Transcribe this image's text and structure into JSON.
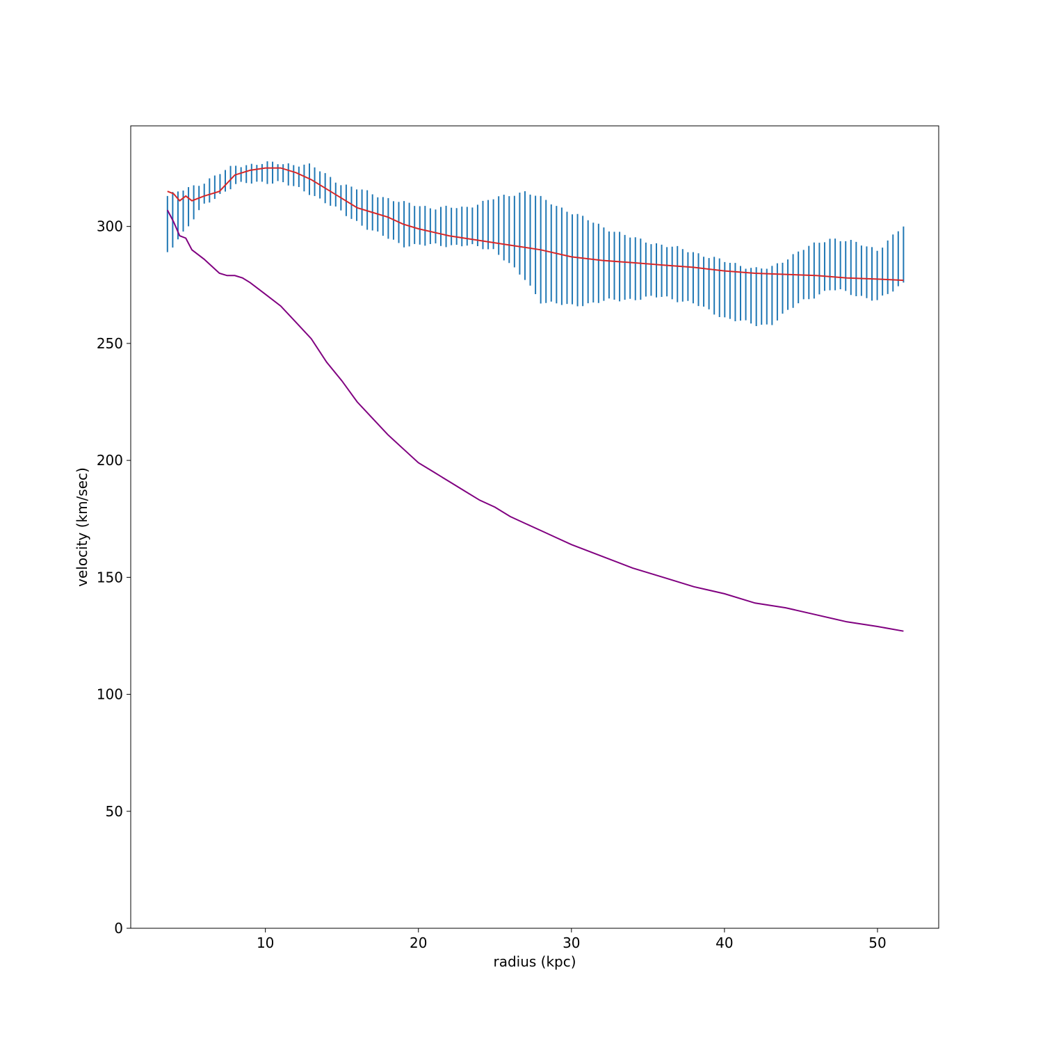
{
  "chart_data": {
    "type": "line",
    "title": "",
    "xlabel": "radius (kpc)",
    "ylabel": "velocity (km/sec)",
    "xlim": [
      1.2,
      54.0
    ],
    "ylim": [
      0,
      343
    ],
    "xticks": [
      10,
      20,
      30,
      40,
      50
    ],
    "yticks": [
      0,
      50,
      100,
      150,
      200,
      250,
      300
    ],
    "grid": false,
    "legend": "none",
    "colors": {
      "errorbar": "#1f77b4",
      "fit_line": "#d62728",
      "component_line": "#800080"
    },
    "observed": {
      "x": [
        3.6,
        6.0,
        8.0,
        10.0,
        11.0,
        13.0,
        15.0,
        17.0,
        19.0,
        21.0,
        23.0,
        25.0,
        27.0,
        28.0,
        30.0,
        32.0,
        34.0,
        36.0,
        38.0,
        40.0,
        42.0,
        43.0,
        45.0,
        47.0,
        48.0,
        50.0,
        51.7
      ],
      "y": [
        301,
        314,
        322,
        323,
        323,
        320,
        312,
        306,
        301,
        300,
        300,
        301,
        296,
        290,
        286,
        284,
        282,
        281,
        278,
        273,
        270,
        270,
        279,
        284,
        283,
        279,
        288
      ],
      "yerr": [
        12,
        5,
        4,
        4,
        4,
        6,
        6,
        8,
        9,
        8,
        8,
        11,
        19,
        22,
        20,
        16,
        13,
        11,
        11,
        12,
        12,
        12,
        11,
        11,
        11,
        11,
        12
      ]
    },
    "series": [
      {
        "x": [
          3.6,
          4.0,
          4.4,
          4.8,
          5.2,
          6.0,
          7.0,
          8.0,
          9.0,
          10.0,
          11.0,
          12.0,
          13.0,
          14.0,
          15.0,
          16.0,
          17.0,
          18.0,
          19.0,
          20.0,
          22.0,
          24.0,
          26.0,
          28.0,
          30.0,
          32.0,
          34.0,
          36.0,
          38.0,
          40.0,
          42.0,
          44.0,
          46.0,
          48.0,
          50.0,
          51.7
        ],
        "y": [
          315,
          314,
          311,
          313,
          311,
          313,
          315,
          322,
          324,
          325,
          325,
          323,
          320,
          316,
          312,
          308,
          306,
          304,
          301,
          299,
          296,
          294,
          292,
          290,
          287,
          285.5,
          284.5,
          283.5,
          282.5,
          281,
          280,
          279.5,
          279,
          278,
          277.5,
          277
        ]
      },
      {
        "x": [
          3.6,
          4.0,
          4.4,
          4.8,
          5.2,
          6.0,
          7.0,
          7.5,
          8.0,
          8.5,
          9.0,
          10.0,
          11.0,
          12.0,
          13.0,
          14.0,
          15.0,
          16.0,
          17.0,
          18.0,
          19.0,
          20.0,
          21.0,
          22.0,
          23.0,
          24.0,
          25.0,
          26.0,
          27.0,
          28.0,
          29.0,
          30.0,
          32.0,
          34.0,
          36.0,
          38.0,
          40.0,
          42.0,
          44.0,
          46.0,
          48.0,
          50.0,
          51.7
        ],
        "y": [
          307,
          302,
          296,
          295,
          290,
          286,
          280,
          279,
          279,
          278,
          276,
          271,
          266,
          259,
          252,
          242,
          234,
          225,
          218,
          211,
          205,
          199,
          195,
          191,
          187,
          183,
          180,
          176,
          173,
          170,
          167,
          164,
          159,
          154,
          150,
          146,
          143,
          139,
          137,
          134,
          131,
          129,
          127
        ]
      }
    ]
  }
}
